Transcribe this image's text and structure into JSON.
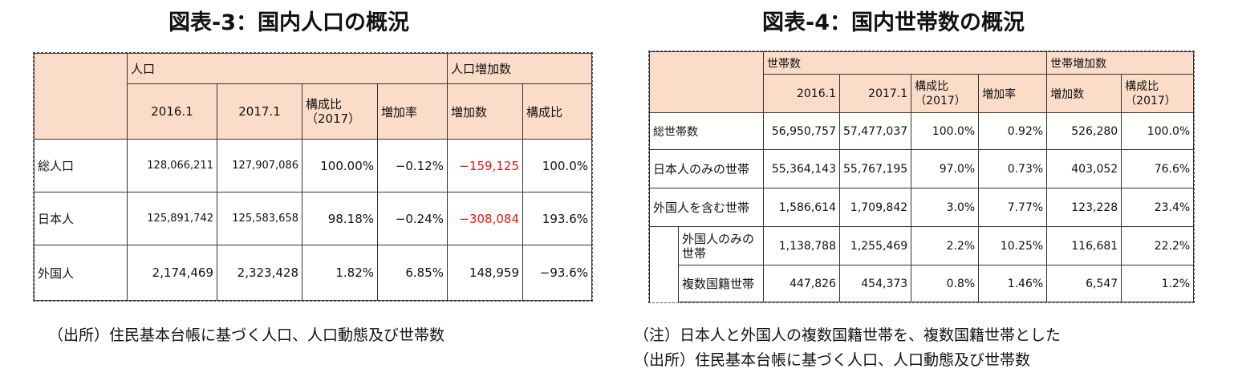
{
  "table3": {
    "title": "図表-3：国内人口の概況",
    "group_headers": {
      "population": "人口",
      "increase_count": "人口増加数"
    },
    "col_headers": [
      "2016.1",
      "2017.1",
      "構成比\n（2017）",
      "増加率",
      "増加数",
      "構成比"
    ],
    "rows": [
      {
        "label": "総人口",
        "values": [
          "128,066,211",
          "127,907,086",
          "100.00%",
          "−0.12%",
          "−159,125",
          "100.0%"
        ]
      },
      {
        "label": "日本人",
        "values": [
          "125,891,742",
          "125,583,658",
          "98.18%",
          "−0.24%",
          "−308,084",
          "193.6%"
        ]
      },
      {
        "label": "外国人",
        "values": [
          "2,174,469",
          "2,323,428",
          "1.82%",
          "6.85%",
          "148,959",
          "−93.6%"
        ]
      }
    ],
    "source": "（出所）住民基本台帳に基づく人口、人口動態及び世帯数",
    "negative_color": "#ee1111"
  },
  "table4": {
    "title": "図表-4：国内世帯数の概況",
    "group_headers": {
      "households": "世帯数",
      "increase_count": "世帯増加数"
    },
    "col_headers": [
      "2016.1",
      "2017.1",
      "構成比\n（2017）",
      "増加率",
      "増加数",
      "構成比\n（2017）"
    ],
    "rows": [
      {
        "label": "総世帯数",
        "values": [
          "56,950,757",
          "57,477,037",
          "100.0%",
          "0.92%",
          "526,280",
          "100.0%"
        ]
      },
      {
        "label": "日本人のみの世帯",
        "values": [
          "55,364,143",
          "55,767,195",
          "97.0%",
          "0.73%",
          "403,052",
          "76.6%"
        ]
      },
      {
        "label": "外国人を含む世帯",
        "values": [
          "1,586,614",
          "1,709,842",
          "3.0%",
          "7.77%",
          "123,228",
          "23.4%"
        ]
      },
      {
        "label": "外国人のみの世帯",
        "values": [
          "1,138,788",
          "1,255,469",
          "2.2%",
          "10.25%",
          "116,681",
          "22.2%"
        ]
      },
      {
        "label": "複数国籍世帯",
        "values": [
          "447,826",
          "454,373",
          "0.8%",
          "1.46%",
          "6,547",
          "1.2%"
        ]
      }
    ],
    "note": "（注）日本人と外国人の複数国籍世帯を、複数国籍世帯とした",
    "source": "（出所）住民基本台帳に基づく人口、人口動態及び世帯数"
  },
  "colors": {
    "header_bg": "#fbdcc8",
    "border": "#333333"
  }
}
